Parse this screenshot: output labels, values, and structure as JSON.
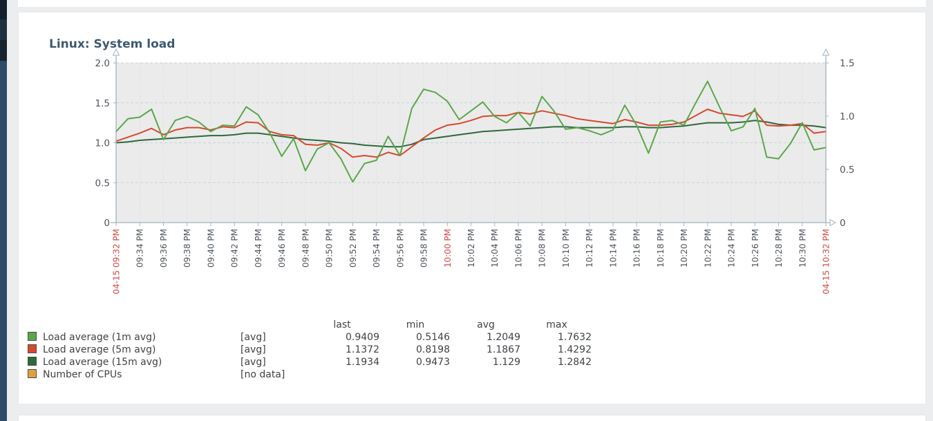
{
  "widget": {
    "title": "Linux: System load"
  },
  "chart_data": {
    "type": "line",
    "title": "Linux: System load",
    "grid": true,
    "legend_position": "bottom",
    "x_minutes_total": 60,
    "x_tick_interval_minutes": 2,
    "x_tick_labels": [
      "04-15 09:32 PM",
      "09:34 PM",
      "09:36 PM",
      "09:38 PM",
      "09:40 PM",
      "09:42 PM",
      "09:44 PM",
      "09:46 PM",
      "09:48 PM",
      "09:50 PM",
      "09:52 PM",
      "09:54 PM",
      "09:56 PM",
      "09:58 PM",
      "10:00 PM",
      "10:02 PM",
      "10:04 PM",
      "10:06 PM",
      "10:08 PM",
      "10:10 PM",
      "10:12 PM",
      "10:14 PM",
      "10:16 PM",
      "10:18 PM",
      "10:20 PM",
      "10:22 PM",
      "10:24 PM",
      "10:26 PM",
      "10:28 PM",
      "10:30 PM",
      "04-15 10:32 PM"
    ],
    "x_tick_red_indices": [
      0,
      14,
      30
    ],
    "left_axis": {
      "ylim": [
        0,
        2.0
      ],
      "tick_labels": [
        "2.0",
        "1.5",
        "1.0",
        "0.5",
        "0"
      ],
      "tick_values": [
        2.0,
        1.5,
        1.0,
        0.5,
        0
      ]
    },
    "right_axis": {
      "ylim": [
        0,
        1.5
      ],
      "tick_labels": [
        "1.5",
        "1.0",
        "0.5",
        "0"
      ],
      "tick_values": [
        1.5,
        1.0,
        0.5,
        0
      ]
    },
    "colors": {
      "red_label": "#cf4a45",
      "grey_label": "#4e555c",
      "axis": "#a2b2bc",
      "grid_h": "#c7d3d9",
      "grid_v": "#c9d5da",
      "plot_bg": "#ebebeb"
    },
    "legend_headers": [
      "last",
      "min",
      "avg",
      "max"
    ],
    "series": [
      {
        "name": "Load average (1m avg)",
        "scale_label": "[avg]",
        "color": "#5aa64a",
        "axis": "left",
        "stats": {
          "last": "0.9409",
          "min": "0.5146",
          "avg": "1.2049",
          "max": "1.7632"
        },
        "values": [
          1.14,
          1.3,
          1.32,
          1.42,
          1.04,
          1.28,
          1.33,
          1.26,
          1.14,
          1.22,
          1.21,
          1.45,
          1.35,
          1.12,
          0.83,
          1.05,
          0.65,
          0.92,
          1.0,
          0.8,
          0.51,
          0.74,
          0.78,
          1.08,
          0.84,
          1.43,
          1.67,
          1.63,
          1.52,
          1.29,
          1.4,
          1.51,
          1.33,
          1.25,
          1.38,
          1.21,
          1.58,
          1.4,
          1.17,
          1.19,
          1.15,
          1.1,
          1.16,
          1.47,
          1.22,
          0.87,
          1.26,
          1.28,
          1.22,
          1.5,
          1.77,
          1.45,
          1.15,
          1.2,
          1.43,
          0.82,
          0.8,
          0.99,
          1.25,
          0.91,
          0.94
        ]
      },
      {
        "name": "Load average (5m avg)",
        "scale_label": "[avg]",
        "color": "#d6492d",
        "axis": "left",
        "stats": {
          "last": "1.1372",
          "min": "0.8198",
          "avg": "1.1867",
          "max": "1.4292"
        },
        "values": [
          1.02,
          1.07,
          1.12,
          1.18,
          1.1,
          1.16,
          1.19,
          1.19,
          1.16,
          1.2,
          1.19,
          1.26,
          1.25,
          1.14,
          1.1,
          1.09,
          0.98,
          0.97,
          1.0,
          0.93,
          0.82,
          0.84,
          0.82,
          0.88,
          0.84,
          0.95,
          1.06,
          1.16,
          1.22,
          1.24,
          1.28,
          1.33,
          1.34,
          1.34,
          1.38,
          1.36,
          1.4,
          1.37,
          1.34,
          1.3,
          1.28,
          1.26,
          1.24,
          1.29,
          1.26,
          1.22,
          1.22,
          1.23,
          1.26,
          1.34,
          1.42,
          1.37,
          1.35,
          1.33,
          1.4,
          1.22,
          1.21,
          1.22,
          1.24,
          1.12,
          1.14
        ]
      },
      {
        "name": "Load average (15m avg)",
        "scale_label": "[avg]",
        "color": "#2f683c",
        "axis": "left",
        "stats": {
          "last": "1.1934",
          "min": "0.9473",
          "avg": "1.129",
          "max": "1.2842"
        },
        "values": [
          1.0,
          1.01,
          1.03,
          1.04,
          1.05,
          1.06,
          1.07,
          1.08,
          1.09,
          1.09,
          1.1,
          1.12,
          1.12,
          1.1,
          1.08,
          1.06,
          1.04,
          1.03,
          1.02,
          1.0,
          0.99,
          0.97,
          0.96,
          0.95,
          0.95,
          0.98,
          1.04,
          1.06,
          1.08,
          1.1,
          1.12,
          1.14,
          1.15,
          1.16,
          1.17,
          1.18,
          1.19,
          1.2,
          1.2,
          1.19,
          1.19,
          1.19,
          1.19,
          1.2,
          1.2,
          1.19,
          1.19,
          1.2,
          1.21,
          1.23,
          1.25,
          1.25,
          1.25,
          1.26,
          1.28,
          1.26,
          1.23,
          1.22,
          1.22,
          1.21,
          1.19
        ]
      },
      {
        "name": "Number of CPUs",
        "scale_label": "[no data]",
        "color": "#e0a040",
        "axis": "right",
        "stats": null,
        "values": []
      }
    ]
  }
}
